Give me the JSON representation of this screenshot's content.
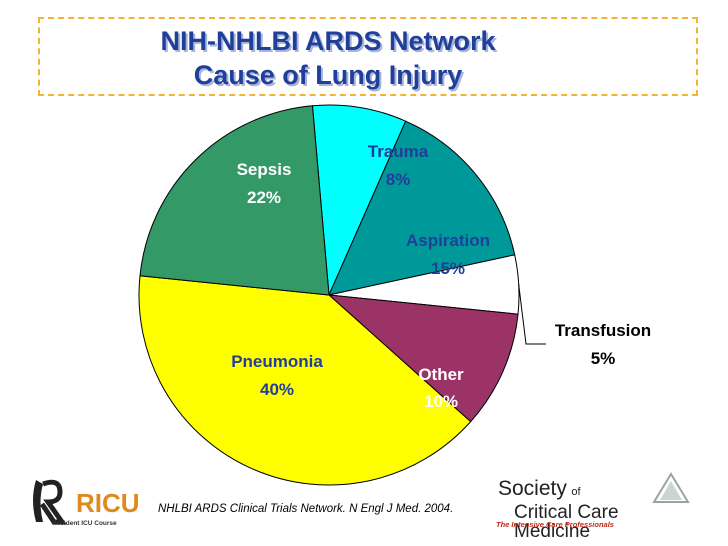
{
  "title": {
    "line1": "NIH-NHLBI ARDS Network",
    "line2": "Cause of Lung Injury"
  },
  "chart_data": {
    "type": "pie",
    "title": "NIH-NHLBI ARDS Network Cause of Lung Injury",
    "start_angle_deg": -5,
    "direction": "clockwise",
    "slices": [
      {
        "name": "Trauma",
        "value": 8,
        "label": "8%",
        "color": "#00ffff"
      },
      {
        "name": "Aspiration",
        "value": 15,
        "label": "15%",
        "color": "#00999a"
      },
      {
        "name": "Transfusion",
        "value": 5,
        "label": "5%",
        "color": "#ffffff"
      },
      {
        "name": "Other",
        "value": 10,
        "label": "10%",
        "color": "#9c3366"
      },
      {
        "name": "Pneumonia",
        "value": 40,
        "label": "40%",
        "color": "#ffff00"
      },
      {
        "name": "Sepsis",
        "value": 22,
        "label": "22%",
        "color": "#339966"
      }
    ],
    "label_colors": {
      "Trauma": "#1f3f9a",
      "Aspiration": "#1f3f9a",
      "Transfusion": "#000000",
      "Other": "#ffffff",
      "Pneumonia": "#1f3f9a",
      "Sepsis": "#ffffff"
    }
  },
  "citation": "NHLBI ARDS Clinical Trials Network. N Engl J Med. 2004.",
  "logos": {
    "left_brand": "RICU",
    "left_caption": "Resident ICU Course",
    "right_line1": "Society",
    "right_of": "of",
    "right_line2": "Critical Care Medicine",
    "right_tagline": "The Intensive Care Professionals"
  }
}
